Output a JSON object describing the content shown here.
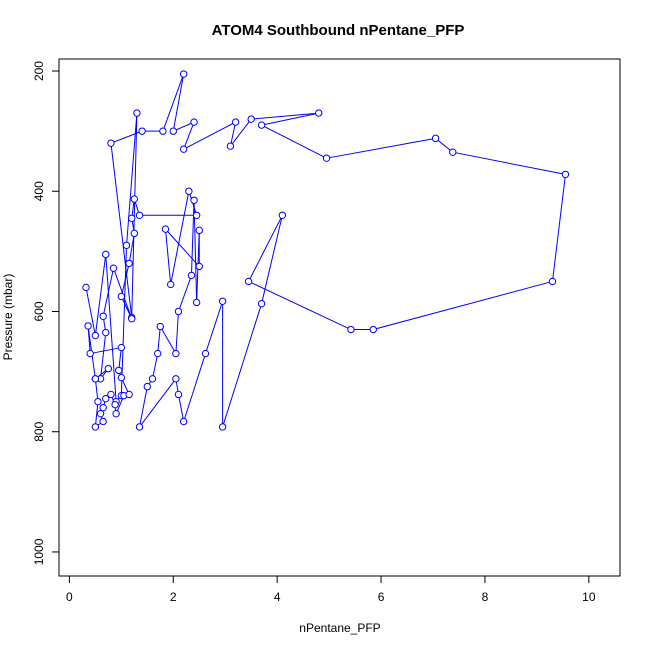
{
  "chart_data": {
    "type": "line",
    "title": "ATOM4 Southbound nPentane_PFP",
    "xlabel": "nPentane_PFP",
    "ylabel": "Pressure (mbar)",
    "xlim": [
      -0.2,
      10.6
    ],
    "ylim": [
      1040,
      180
    ],
    "y_reversed": true,
    "x_ticks": [
      0,
      2,
      4,
      6,
      8,
      10
    ],
    "y_ticks": [
      200,
      400,
      600,
      800,
      1000
    ],
    "grid": false,
    "legend": "none",
    "marker": "open-circle",
    "colors": {
      "series": "#0000ff",
      "axis": "#000000",
      "background": "#ffffff"
    },
    "series": [
      {
        "points": [
          [
            0.32,
            560
          ],
          [
            0.5,
            640
          ],
          [
            0.7,
            505
          ],
          [
            0.9,
            750
          ],
          [
            1.0,
            740
          ],
          [
            1.1,
            490
          ],
          [
            1.3,
            270
          ],
          [
            1.2,
            610
          ],
          [
            0.8,
            320
          ],
          [
            1.4,
            300
          ],
          [
            1.8,
            300
          ],
          [
            2.2,
            205
          ],
          [
            2.0,
            300
          ],
          [
            2.4,
            285
          ],
          [
            2.2,
            330
          ],
          [
            3.2,
            285
          ],
          [
            3.1,
            325
          ],
          [
            3.5,
            280
          ],
          [
            4.8,
            270
          ],
          [
            3.7,
            290
          ],
          [
            4.95,
            345
          ],
          [
            7.05,
            312
          ],
          [
            7.38,
            335
          ],
          [
            9.55,
            372
          ],
          [
            9.3,
            550
          ],
          [
            5.85,
            630
          ],
          [
            5.42,
            630
          ],
          [
            3.45,
            550
          ],
          [
            4.1,
            440
          ],
          [
            3.7,
            587
          ],
          [
            2.95,
            792
          ],
          [
            2.95,
            583
          ],
          [
            2.62,
            670
          ],
          [
            2.2,
            783
          ],
          [
            2.1,
            738
          ],
          [
            2.05,
            712
          ],
          [
            1.35,
            792
          ],
          [
            1.5,
            725
          ],
          [
            1.6,
            712
          ],
          [
            1.7,
            670
          ],
          [
            1.75,
            625
          ],
          [
            2.05,
            670
          ],
          [
            2.1,
            600
          ],
          [
            2.35,
            540
          ],
          [
            2.4,
            415
          ],
          [
            2.45,
            585
          ],
          [
            2.5,
            465
          ],
          [
            2.5,
            525
          ],
          [
            1.85,
            463
          ],
          [
            1.95,
            555
          ],
          [
            2.3,
            400
          ],
          [
            2.45,
            440
          ],
          [
            1.35,
            440
          ],
          [
            1.25,
            413
          ],
          [
            1.2,
            445
          ],
          [
            1.25,
            470
          ],
          [
            1.15,
            520
          ],
          [
            1.0,
            575
          ],
          [
            1.2,
            612
          ],
          [
            0.85,
            528
          ],
          [
            0.65,
            608
          ],
          [
            0.7,
            635
          ],
          [
            0.6,
            712
          ],
          [
            0.75,
            695
          ],
          [
            0.5,
            712
          ],
          [
            0.55,
            750
          ],
          [
            0.5,
            792
          ],
          [
            0.65,
            783
          ],
          [
            0.6,
            770
          ],
          [
            0.65,
            760
          ],
          [
            0.7,
            745
          ],
          [
            0.8,
            738
          ],
          [
            0.88,
            755
          ],
          [
            0.9,
            770
          ],
          [
            1.05,
            740
          ],
          [
            1.15,
            738
          ],
          [
            1.0,
            710
          ],
          [
            0.95,
            698
          ],
          [
            1.0,
            660
          ],
          [
            0.4,
            670
          ],
          [
            0.36,
            624
          ],
          [
            0.5,
            712
          ]
        ]
      }
    ]
  }
}
